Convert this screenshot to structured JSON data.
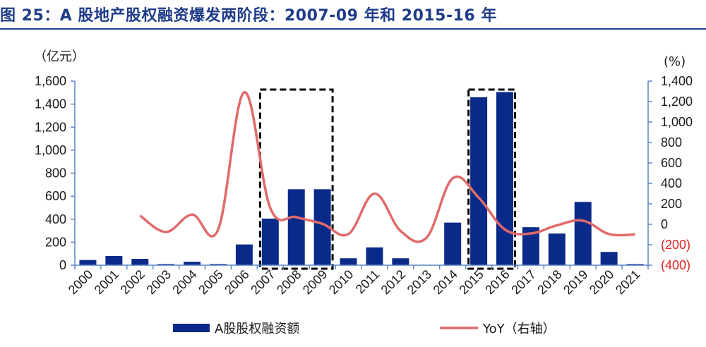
{
  "title": "图 25：A 股地产股权融资爆发两阶段：2007-09 年和 2015-16 年",
  "colors": {
    "title": "#1f3c88",
    "bar": "#0a2a8a",
    "line": "#e06a6a",
    "negative_tick": "#e02020",
    "axis": "#5a86c5",
    "box": "#000000"
  },
  "chart_data": {
    "type": "bar",
    "categories": [
      "2000",
      "2001",
      "2002",
      "2003",
      "2004",
      "2005",
      "2006",
      "2007",
      "2008",
      "2009",
      "2010",
      "2011",
      "2012",
      "2013",
      "2014",
      "2015",
      "2016",
      "2017",
      "2018",
      "2019",
      "2020",
      "2021"
    ],
    "series": [
      {
        "name": "A股股权融资额",
        "type": "bar",
        "axis": "left",
        "values": [
          45,
          80,
          55,
          10,
          30,
          10,
          180,
          405,
          660,
          660,
          60,
          155,
          60,
          0,
          370,
          1460,
          1505,
          330,
          275,
          550,
          115,
          10
        ]
      },
      {
        "name": "YoY（右轴）",
        "type": "line",
        "axis": "right",
        "values": [
          null,
          null,
          85,
          -75,
          95,
          -50,
          1290,
          160,
          70,
          5,
          -95,
          300,
          -65,
          -130,
          450,
          260,
          -50,
          -90,
          -10,
          35,
          -95,
          -100
        ]
      }
    ],
    "y_left": {
      "unit": "（亿元）",
      "ylim": [
        0,
        1600
      ],
      "ticks": [
        "0",
        "200",
        "400",
        "600",
        "800",
        "1,000",
        "1,200",
        "1,400",
        "1,600"
      ]
    },
    "y_right": {
      "unit": "(%)",
      "ylim": [
        -400,
        1400
      ],
      "ticks": [
        "(400)",
        "(200)",
        "0",
        "200",
        "400",
        "600",
        "800",
        "1,000",
        "1,200",
        "1,400"
      ]
    },
    "highlight_ranges": [
      [
        "2007",
        "2009"
      ],
      [
        "2015",
        "2016"
      ]
    ],
    "legend_position": "bottom",
    "grid": false
  }
}
